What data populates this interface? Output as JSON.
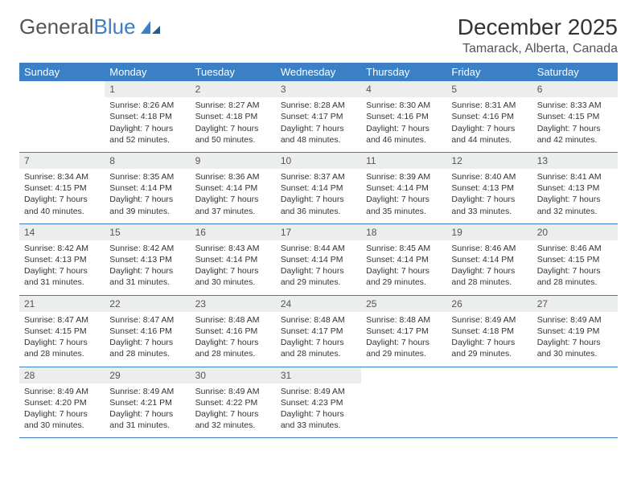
{
  "brand": {
    "name_a": "General",
    "name_b": "Blue"
  },
  "title": "December 2025",
  "location": "Tamarack, Alberta, Canada",
  "colors": {
    "header_bg": "#3b7fc4",
    "header_fg": "#ffffff",
    "daynum_bg": "#eceded",
    "rule": "#3b7fc4",
    "text": "#333333"
  },
  "weekdays": [
    "Sunday",
    "Monday",
    "Tuesday",
    "Wednesday",
    "Thursday",
    "Friday",
    "Saturday"
  ],
  "weeks": [
    {
      "nums": [
        "",
        "1",
        "2",
        "3",
        "4",
        "5",
        "6"
      ],
      "cells": [
        "",
        "Sunrise: 8:26 AM\nSunset: 4:18 PM\nDaylight: 7 hours and 52 minutes.",
        "Sunrise: 8:27 AM\nSunset: 4:18 PM\nDaylight: 7 hours and 50 minutes.",
        "Sunrise: 8:28 AM\nSunset: 4:17 PM\nDaylight: 7 hours and 48 minutes.",
        "Sunrise: 8:30 AM\nSunset: 4:16 PM\nDaylight: 7 hours and 46 minutes.",
        "Sunrise: 8:31 AM\nSunset: 4:16 PM\nDaylight: 7 hours and 44 minutes.",
        "Sunrise: 8:33 AM\nSunset: 4:15 PM\nDaylight: 7 hours and 42 minutes."
      ]
    },
    {
      "nums": [
        "7",
        "8",
        "9",
        "10",
        "11",
        "12",
        "13"
      ],
      "cells": [
        "Sunrise: 8:34 AM\nSunset: 4:15 PM\nDaylight: 7 hours and 40 minutes.",
        "Sunrise: 8:35 AM\nSunset: 4:14 PM\nDaylight: 7 hours and 39 minutes.",
        "Sunrise: 8:36 AM\nSunset: 4:14 PM\nDaylight: 7 hours and 37 minutes.",
        "Sunrise: 8:37 AM\nSunset: 4:14 PM\nDaylight: 7 hours and 36 minutes.",
        "Sunrise: 8:39 AM\nSunset: 4:14 PM\nDaylight: 7 hours and 35 minutes.",
        "Sunrise: 8:40 AM\nSunset: 4:13 PM\nDaylight: 7 hours and 33 minutes.",
        "Sunrise: 8:41 AM\nSunset: 4:13 PM\nDaylight: 7 hours and 32 minutes."
      ]
    },
    {
      "nums": [
        "14",
        "15",
        "16",
        "17",
        "18",
        "19",
        "20"
      ],
      "cells": [
        "Sunrise: 8:42 AM\nSunset: 4:13 PM\nDaylight: 7 hours and 31 minutes.",
        "Sunrise: 8:42 AM\nSunset: 4:13 PM\nDaylight: 7 hours and 31 minutes.",
        "Sunrise: 8:43 AM\nSunset: 4:14 PM\nDaylight: 7 hours and 30 minutes.",
        "Sunrise: 8:44 AM\nSunset: 4:14 PM\nDaylight: 7 hours and 29 minutes.",
        "Sunrise: 8:45 AM\nSunset: 4:14 PM\nDaylight: 7 hours and 29 minutes.",
        "Sunrise: 8:46 AM\nSunset: 4:14 PM\nDaylight: 7 hours and 28 minutes.",
        "Sunrise: 8:46 AM\nSunset: 4:15 PM\nDaylight: 7 hours and 28 minutes."
      ]
    },
    {
      "nums": [
        "21",
        "22",
        "23",
        "24",
        "25",
        "26",
        "27"
      ],
      "cells": [
        "Sunrise: 8:47 AM\nSunset: 4:15 PM\nDaylight: 7 hours and 28 minutes.",
        "Sunrise: 8:47 AM\nSunset: 4:16 PM\nDaylight: 7 hours and 28 minutes.",
        "Sunrise: 8:48 AM\nSunset: 4:16 PM\nDaylight: 7 hours and 28 minutes.",
        "Sunrise: 8:48 AM\nSunset: 4:17 PM\nDaylight: 7 hours and 28 minutes.",
        "Sunrise: 8:48 AM\nSunset: 4:17 PM\nDaylight: 7 hours and 29 minutes.",
        "Sunrise: 8:49 AM\nSunset: 4:18 PM\nDaylight: 7 hours and 29 minutes.",
        "Sunrise: 8:49 AM\nSunset: 4:19 PM\nDaylight: 7 hours and 30 minutes."
      ]
    },
    {
      "nums": [
        "28",
        "29",
        "30",
        "31",
        "",
        "",
        ""
      ],
      "cells": [
        "Sunrise: 8:49 AM\nSunset: 4:20 PM\nDaylight: 7 hours and 30 minutes.",
        "Sunrise: 8:49 AM\nSunset: 4:21 PM\nDaylight: 7 hours and 31 minutes.",
        "Sunrise: 8:49 AM\nSunset: 4:22 PM\nDaylight: 7 hours and 32 minutes.",
        "Sunrise: 8:49 AM\nSunset: 4:23 PM\nDaylight: 7 hours and 33 minutes.",
        "",
        "",
        ""
      ]
    }
  ]
}
